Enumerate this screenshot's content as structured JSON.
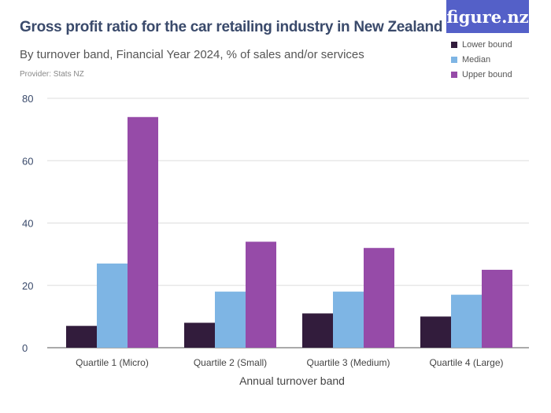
{
  "header": {
    "title": "Gross profit ratio for the car retailing industry in New Zealand",
    "subtitle": "By turnover band, Financial Year 2024, % of sales and/or services",
    "provider": "Provider: Stats NZ",
    "logo": "figure.nz"
  },
  "chart_data": {
    "type": "bar",
    "title": "Gross profit ratio for the car retailing industry in New Zealand",
    "subtitle": "By turnover band, Financial Year 2024, % of sales and/or services",
    "xlabel": "Annual turnover band",
    "ylabel": "",
    "ylim": [
      0,
      80
    ],
    "yticks": [
      0,
      20,
      40,
      60,
      80
    ],
    "grid": true,
    "legend": "top-right",
    "categories": [
      "Quartile 1 (Micro)",
      "Quartile 2 (Small)",
      "Quartile 3 (Medium)",
      "Quartile 4 (Large)"
    ],
    "series": [
      {
        "name": "Lower bound",
        "color": "#321c3c",
        "values": [
          7,
          8,
          11,
          10
        ]
      },
      {
        "name": "Median",
        "color": "#7eb5e4",
        "values": [
          27,
          18,
          18,
          17
        ]
      },
      {
        "name": "Upper bound",
        "color": "#964ba8",
        "values": [
          74,
          34,
          32,
          25
        ]
      }
    ]
  }
}
